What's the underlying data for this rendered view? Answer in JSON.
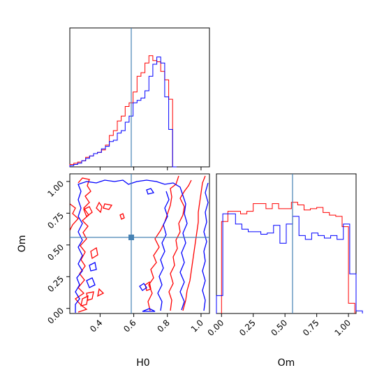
{
  "chart_data": {
    "type": "corner",
    "parameters": [
      "H0",
      "Om"
    ],
    "truth": {
      "H0": 0.58,
      "Om": 0.56
    },
    "colors": {
      "a": "#ff0000",
      "b": "#0000ff",
      "truth": "#4682b4"
    },
    "panels": [
      {
        "name": "H0-marginal",
        "type": "histogram",
        "xlim": [
          0.22,
          1.05
        ],
        "bin_width": 0.0235,
        "series": [
          {
            "color": "#ff0000",
            "start": 0.22,
            "values": [
              0.02,
              0.03,
              0.04,
              0.05,
              0.08,
              0.09,
              0.11,
              0.12,
              0.14,
              0.18,
              0.26,
              0.3,
              0.38,
              0.42,
              0.5,
              0.53,
              0.62,
              0.75,
              0.78,
              0.86,
              0.92,
              0.88,
              0.87,
              0.79,
              0.72,
              0.56,
              0.0
            ]
          },
          {
            "color": "#0000ff",
            "start": 0.22,
            "values": [
              0.01,
              0.02,
              0.03,
              0.05,
              0.07,
              0.09,
              0.11,
              0.12,
              0.15,
              0.17,
              0.21,
              0.22,
              0.28,
              0.3,
              0.37,
              0.42,
              0.53,
              0.55,
              0.57,
              0.63,
              0.75,
              0.85,
              0.91,
              0.86,
              0.58,
              0.31,
              0.0
            ]
          }
        ],
        "ticks": [
          0.4,
          0.6,
          0.8,
          1.0
        ]
      },
      {
        "name": "H0-Om-contour",
        "type": "contour",
        "xlabel": "H0",
        "ylabel": "Om",
        "xlim": [
          0.22,
          1.05
        ],
        "ylim": [
          -0.04,
          1.06
        ],
        "xticks": [
          0.4,
          0.6,
          0.8,
          1.0
        ],
        "xticklabels": [
          "0.4",
          "0.6",
          "0.8",
          "1.0"
        ],
        "yticks": [
          0.0,
          0.25,
          0.5,
          0.75,
          1.0
        ],
        "yticklabels": [
          "0.00",
          "0.25",
          "0.50",
          "0.75",
          "1.00"
        ]
      },
      {
        "name": "Om-marginal",
        "type": "histogram",
        "xlabel": "Om",
        "xlim": [
          -0.04,
          1.06
        ],
        "bin_width": 0.05,
        "xticks": [
          0.0,
          0.25,
          0.5,
          0.75,
          1.0
        ],
        "xticklabels": [
          "0.00",
          "0.25",
          "0.50",
          "0.75",
          "1.00"
        ],
        "series": [
          {
            "color": "#ff0000",
            "start": 0.0,
            "values": [
              0.72,
              0.8,
              0.8,
              0.78,
              0.8,
              0.86,
              0.86,
              0.82,
              0.86,
              0.82,
              0.82,
              0.87,
              0.85,
              0.81,
              0.82,
              0.83,
              0.79,
              0.77,
              0.76,
              0.68,
              0.08
            ]
          },
          {
            "color": "#0000ff",
            "start": -0.04,
            "values": [
              0.14,
              0.78,
              0.78,
              0.7,
              0.66,
              0.64,
              0.64,
              0.62,
              0.63,
              0.69,
              0.55,
              0.7,
              0.76,
              0.61,
              0.58,
              0.63,
              0.61,
              0.59,
              0.61,
              0.58,
              0.7,
              0.31,
              0.02
            ]
          }
        ]
      }
    ]
  }
}
